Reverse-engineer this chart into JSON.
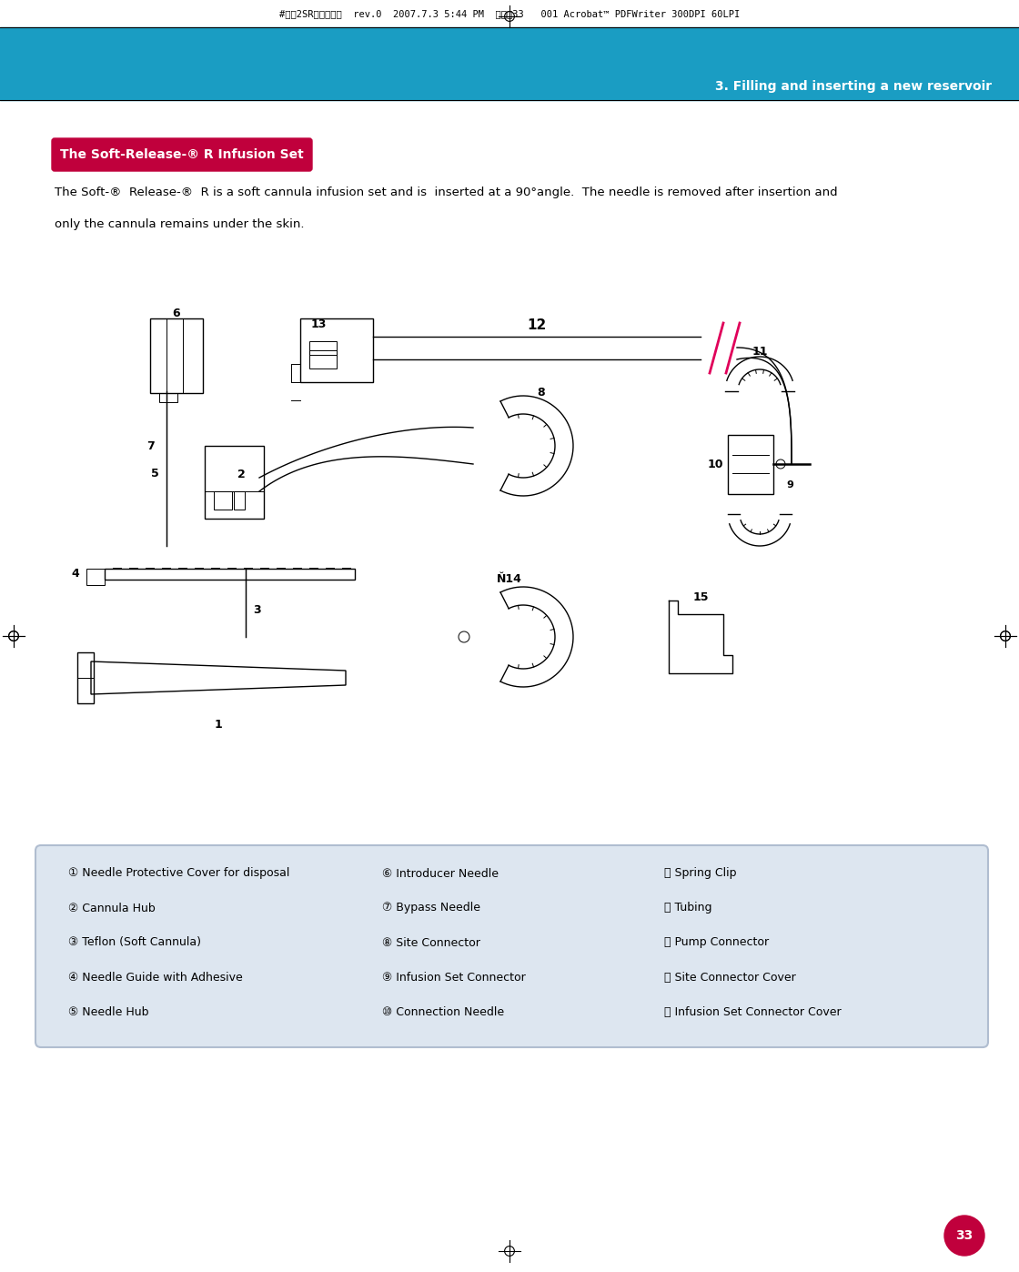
{
  "header_bar_color": "#1a9dc3",
  "section_title_text": "3. Filling and inserting a new reservoir",
  "red_label_text": "The Soft-Release-® R Infusion Set",
  "red_label_bg": "#c0003c",
  "body_text_line1": "The Soft-®  Release-®  R is a soft cannula infusion set and is  inserted at a 90°angle.  The needle is removed after insertion and",
  "body_text_line2": "only the cannula remains under the skin.",
  "legend_box_bg": "#dde6f0",
  "legend_items_col1": [
    "① Needle Protective Cover for disposal",
    "② Cannula Hub",
    "③ Teflon (Soft Cannula)",
    "④ Needle Guide with Adhesive",
    "⑤ Needle Hub"
  ],
  "legend_items_col2": [
    "⑥ Introducer Needle",
    "⑦ Bypass Needle",
    "⑧ Site Connector",
    "⑨ Infusion Set Connector",
    "⑩ Connection Needle"
  ],
  "legend_items_col3": [
    "⑪ Spring Clip",
    "⑫ Tubing",
    "⑬ Pump Connector",
    "⑭ Site Connector Cover",
    "⑮ Infusion Set Connector Cover"
  ],
  "page_number": "33",
  "page_number_bg": "#c0003c",
  "slash_color": "#e0005a",
  "line_color": "#000000"
}
